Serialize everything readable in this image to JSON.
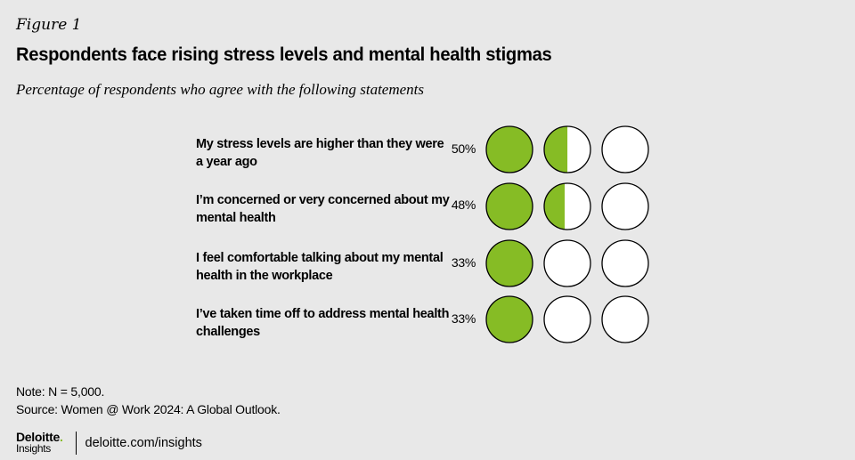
{
  "figure_label": "Figure 1",
  "title": "Respondents face rising stress levels and mental health stigmas",
  "subtitle": "Percentage of respondents who agree with the following statements",
  "note": "Note: N = 5,000.",
  "source": "Source: Women @ Work 2024: A Global Outlook.",
  "footer": {
    "logo_name": "Deloitte",
    "logo_dot": ".",
    "logo_sub": "Insights",
    "site": "deloitte.com/insights"
  },
  "colors": {
    "fill": "#86bc25",
    "outline": "#000000",
    "empty": "#ffffff",
    "background": "#e8e8e8"
  },
  "chart_data": {
    "type": "icon-array",
    "unit_per_circle": 33.3,
    "circles_per_row": 3,
    "categories": [
      "My stress levels are higher than they were a year ago",
      "I’m concerned or very concerned about my mental health",
      "I feel comfortable talking about my mental health in the workplace",
      "I’ve taken time off to address mental health challenges"
    ],
    "values": [
      50,
      48,
      33,
      33
    ],
    "labels": [
      "50%",
      "48%",
      "33%",
      "33%"
    ]
  }
}
